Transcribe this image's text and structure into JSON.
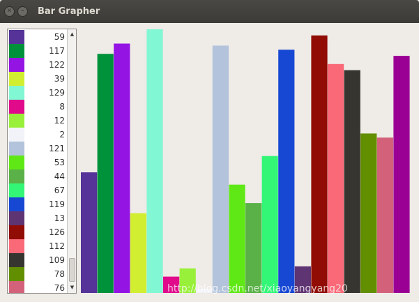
{
  "window": {
    "title": "Bar Grapher",
    "close_icon": "close-icon",
    "minimize_icon": "minimize-icon"
  },
  "list": {
    "items": [
      {
        "value": "59",
        "color": "#553399"
      },
      {
        "value": "117",
        "color": "#00923b"
      },
      {
        "value": "122",
        "color": "#9314e3"
      },
      {
        "value": "39",
        "color": "#d2ee30"
      },
      {
        "value": "129",
        "color": "#82f7d4"
      },
      {
        "value": "8",
        "color": "#e00a8b"
      },
      {
        "value": "12",
        "color": "#99f03a"
      },
      {
        "value": "2",
        "color": "#f2f3f9"
      },
      {
        "value": "121",
        "color": "#b2c3db"
      },
      {
        "value": "53",
        "color": "#5fe815"
      },
      {
        "value": "44",
        "color": "#5ab148"
      },
      {
        "value": "67",
        "color": "#33f677"
      },
      {
        "value": "119",
        "color": "#1748d4"
      },
      {
        "value": "13",
        "color": "#5f3473"
      },
      {
        "value": "126",
        "color": "#900c04"
      },
      {
        "value": "112",
        "color": "#f96978"
      },
      {
        "value": "109",
        "color": "#36352f"
      },
      {
        "value": "78",
        "color": "#628f00"
      },
      {
        "value": "76",
        "color": "#d3617a"
      }
    ],
    "scroll_up_icon": "scroll-up-arrow-icon",
    "scroll_down_icon": "scroll-down-arrow-icon"
  },
  "chart_data": {
    "type": "bar",
    "values": [
      59,
      117,
      122,
      39,
      129,
      8,
      12,
      2,
      121,
      53,
      44,
      67,
      119,
      13,
      126,
      112,
      109,
      78,
      76,
      116
    ],
    "colors": [
      "#553399",
      "#00923b",
      "#9314e3",
      "#d2ee30",
      "#82f7d4",
      "#e00a8b",
      "#99f03a",
      "#f2f3f9",
      "#b2c3db",
      "#5fe815",
      "#5ab148",
      "#33f677",
      "#1748d4",
      "#5f3473",
      "#900c04",
      "#f96978",
      "#36352f",
      "#628f00",
      "#d3617a",
      "#9a0094"
    ],
    "ylim": [
      0,
      129
    ]
  },
  "watermark": "http://blog.csdn.net/xiaoyangyang20"
}
